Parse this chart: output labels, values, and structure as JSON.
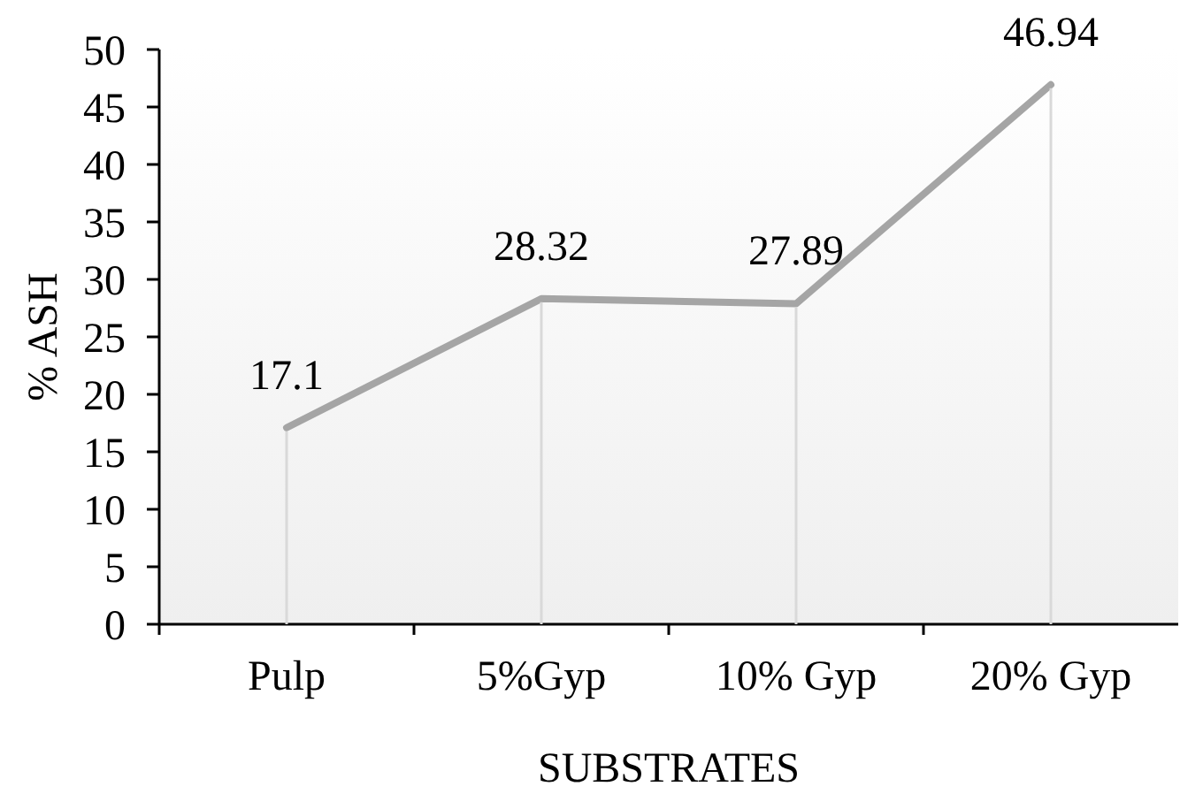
{
  "chart_data": {
    "type": "line",
    "xlabel": "SUBSTRATES",
    "ylabel": "% ASH",
    "categories": [
      "Pulp",
      "5%Gyp",
      "10% Gyp",
      "20% Gyp"
    ],
    "values": [
      17.1,
      28.32,
      27.89,
      46.94
    ],
    "color": "#a5a5a5",
    "ylim": [
      0,
      50
    ],
    "yticks": [
      0,
      5,
      10,
      15,
      20,
      25,
      30,
      35,
      40,
      45,
      50
    ],
    "data_labels": true
  }
}
